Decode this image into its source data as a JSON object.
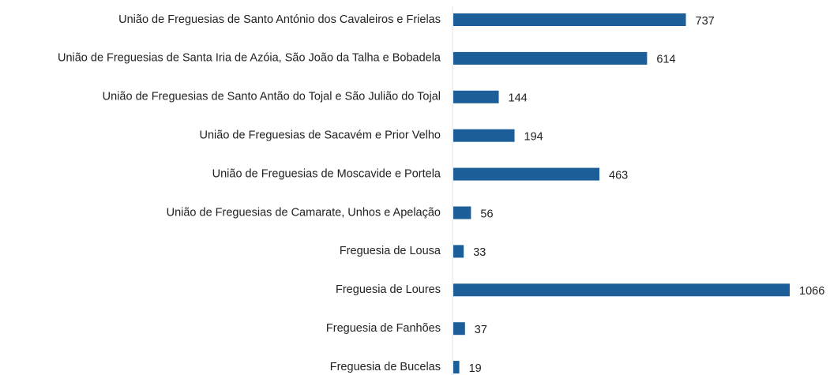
{
  "chart_data": {
    "type": "bar",
    "orientation": "horizontal",
    "categories": [
      "União de Freguesias de Santo António dos Cavaleiros e Frielas",
      "União de Freguesias de Santa Iria de Azóia, São João da Talha e Bobadela",
      "União de Freguesias de Santo Antão do Tojal e São Julião do Tojal",
      "União de Freguesias de Sacavém e Prior Velho",
      "União de Freguesias de Moscavide e Portela",
      "União de Freguesias de Camarate, Unhos e Apelação",
      "Freguesia de Lousa",
      "Freguesia de Loures",
      "Freguesia de Fanhões",
      "Freguesia de Bucelas"
    ],
    "values": [
      737,
      614,
      144,
      194,
      463,
      56,
      33,
      1066,
      37,
      19
    ],
    "color": "#1b5e98"
  }
}
